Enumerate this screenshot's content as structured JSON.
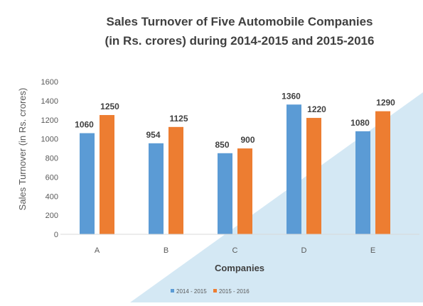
{
  "chart_data": {
    "type": "bar",
    "title_line1": "Sales Turnover of Five Automobile Companies",
    "title_line2": "(in Rs. crores) during 2014-2015 and 2015-2016",
    "xlabel": "Companies",
    "ylabel": "Sales Turnover (in Rs. crores)",
    "categories": [
      "A",
      "B",
      "C",
      "D",
      "E"
    ],
    "series": [
      {
        "name": "2014 - 2015",
        "values": [
          1060,
          954,
          850,
          1360,
          1080
        ],
        "color": "#5B9BD5"
      },
      {
        "name": "2015 - 2016",
        "values": [
          1250,
          1125,
          900,
          1220,
          1290
        ],
        "color": "#ED7D31"
      }
    ],
    "ylim": [
      0,
      1600
    ],
    "yticks": [
      0,
      200,
      400,
      600,
      800,
      1000,
      1200,
      1400,
      1600
    ],
    "grid": false,
    "legend_position": "bottom"
  },
  "colors": {
    "title": "#404040",
    "axis_text": "#595959",
    "watermark": "#CFE6F3"
  }
}
